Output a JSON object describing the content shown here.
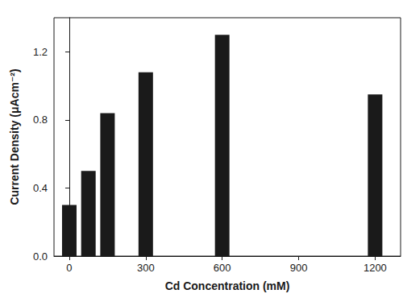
{
  "chart_data": {
    "type": "bar",
    "x_label": "Cd Concentration (mM)",
    "y_label": "Current Density (μAcm⁻²)",
    "x": [
      0,
      75,
      150,
      300,
      600,
      1200
    ],
    "values": [
      0.3,
      0.5,
      0.84,
      1.08,
      1.3,
      0.95
    ],
    "color": "#1a1a1a",
    "xlim": [
      -60,
      1300
    ],
    "xticks": [
      0,
      300,
      600,
      900,
      1200
    ],
    "ylim": [
      0,
      1.4
    ],
    "yticks": [
      {
        "value": 0,
        "label": "0.0"
      },
      {
        "value": 0.4,
        "label": "0.4"
      },
      {
        "value": 0.8,
        "label": "0.8"
      },
      {
        "value": 1.2,
        "label": "1.2"
      }
    ],
    "grid": false
  }
}
